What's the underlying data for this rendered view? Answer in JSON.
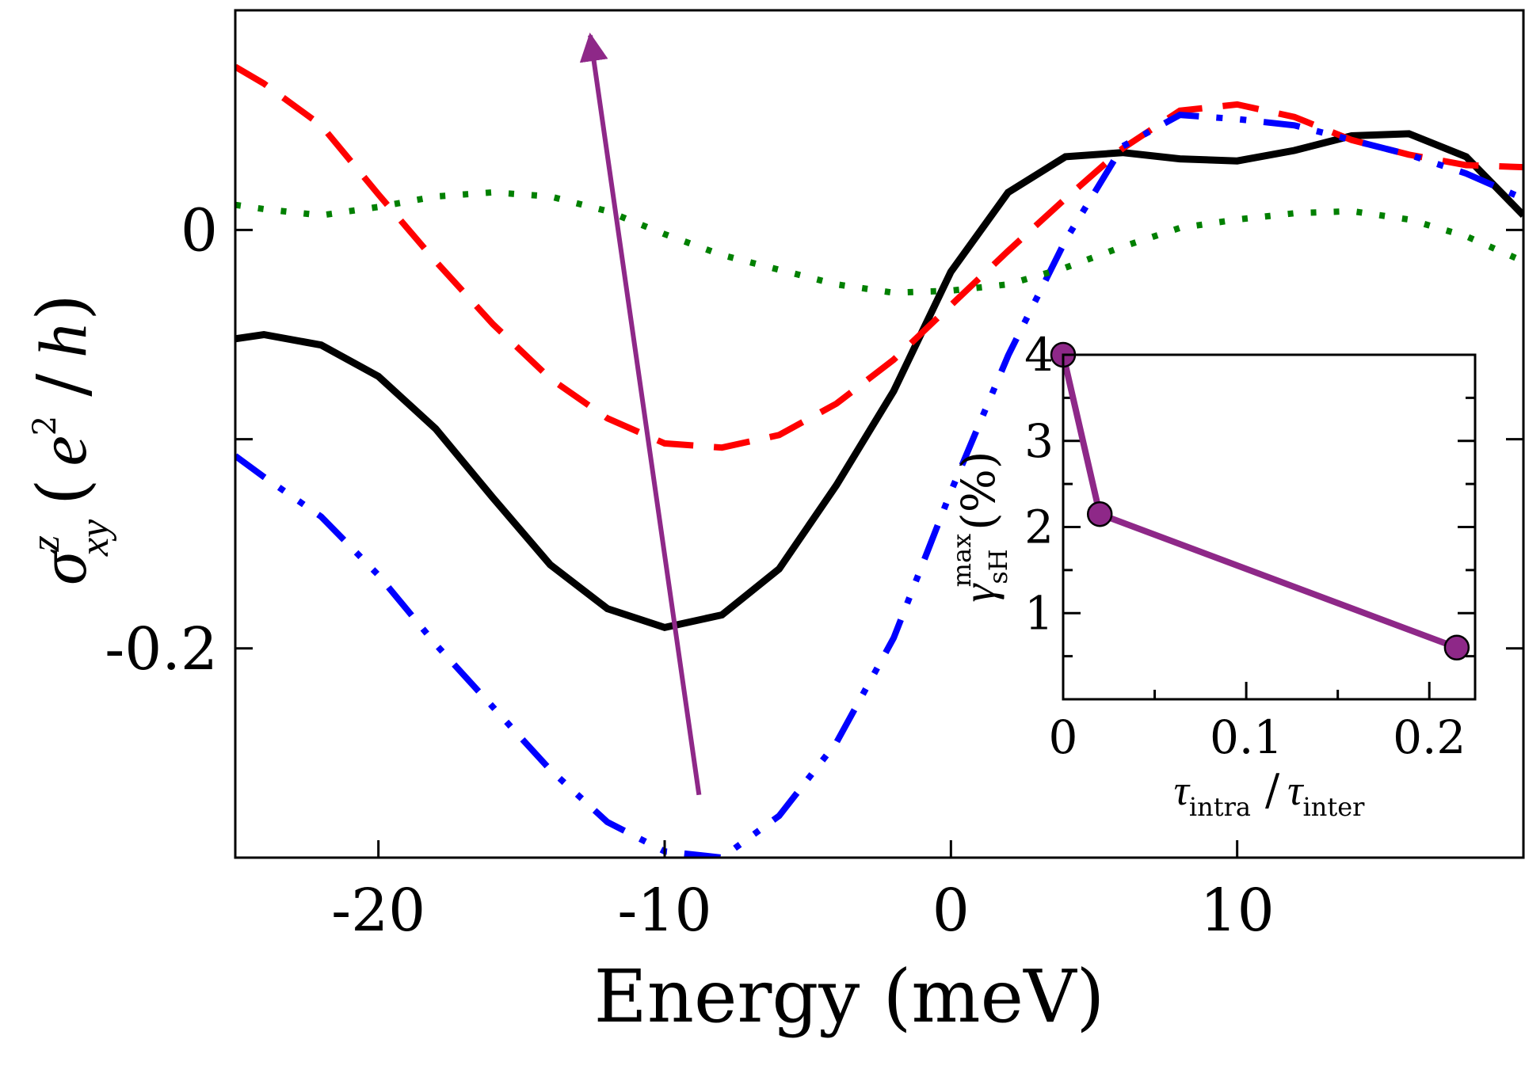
{
  "chart_data": [
    {
      "type": "line",
      "title": "",
      "xlabel": "Energy (meV)",
      "ylabel": {
        "symbol": "σ",
        "superscript": "z",
        "subscript": "xy",
        "open": "(",
        "unit_base": "e",
        "unit_sup": "2",
        "unit_slash": "/",
        "unit_h": "h",
        "close": ")"
      },
      "xlim": [
        -25,
        20
      ],
      "ylim": [
        -0.3,
        0.105
      ],
      "x_major_ticks": [
        {
          "value": -20,
          "label": "-20"
        },
        {
          "value": -10,
          "label": "-10"
        },
        {
          "value": 0,
          "label": "0"
        },
        {
          "value": 10,
          "label": "10"
        }
      ],
      "y_major_ticks": [
        {
          "value": 0,
          "label": "0"
        },
        {
          "value": -0.2,
          "label": "-0.2"
        }
      ],
      "y_minor_ticks": [
        -0.1,
        -0.3
      ],
      "right_ticks": [
        0,
        -0.1,
        -0.2
      ],
      "series": [
        {
          "name": "solid",
          "color": "#000000",
          "style": "solid",
          "points": [
            [
              -25,
              -0.052
            ],
            [
              -24,
              -0.05
            ],
            [
              -22,
              -0.055
            ],
            [
              -20,
              -0.07
            ],
            [
              -18,
              -0.095
            ],
            [
              -16,
              -0.128
            ],
            [
              -14,
              -0.16
            ],
            [
              -12,
              -0.181
            ],
            [
              -10,
              -0.19
            ],
            [
              -8,
              -0.184
            ],
            [
              -6,
              -0.162
            ],
            [
              -4,
              -0.122
            ],
            [
              -2,
              -0.077
            ],
            [
              0,
              -0.02
            ],
            [
              2,
              0.018
            ],
            [
              4,
              0.035
            ],
            [
              6,
              0.037
            ],
            [
              8,
              0.034
            ],
            [
              10,
              0.033
            ],
            [
              12,
              0.038
            ],
            [
              14,
              0.045
            ],
            [
              16,
              0.046
            ],
            [
              18,
              0.035
            ],
            [
              20,
              0.007
            ]
          ]
        },
        {
          "name": "dashed",
          "color": "#ff0000",
          "style": "dashed",
          "points": [
            [
              -25,
              0.078
            ],
            [
              -24,
              0.07
            ],
            [
              -22,
              0.05
            ],
            [
              -20,
              0.017
            ],
            [
              -18,
              -0.015
            ],
            [
              -16,
              -0.045
            ],
            [
              -14,
              -0.071
            ],
            [
              -12,
              -0.09
            ],
            [
              -10,
              -0.102
            ],
            [
              -8,
              -0.104
            ],
            [
              -6,
              -0.098
            ],
            [
              -4,
              -0.083
            ],
            [
              -2,
              -0.062
            ],
            [
              0,
              -0.036
            ],
            [
              2,
              -0.01
            ],
            [
              4,
              0.015
            ],
            [
              6,
              0.039
            ],
            [
              8,
              0.057
            ],
            [
              10,
              0.06
            ],
            [
              12,
              0.054
            ],
            [
              14,
              0.043
            ],
            [
              16,
              0.036
            ],
            [
              18,
              0.031
            ],
            [
              20,
              0.03
            ]
          ]
        },
        {
          "name": "dash-dot-dot",
          "color": "#0000ff",
          "style": "dashdotdot",
          "points": [
            [
              -25,
              -0.108
            ],
            [
              -24,
              -0.118
            ],
            [
              -22,
              -0.137
            ],
            [
              -20,
              -0.165
            ],
            [
              -18,
              -0.198
            ],
            [
              -16,
              -0.228
            ],
            [
              -14,
              -0.258
            ],
            [
              -12,
              -0.283
            ],
            [
              -10,
              -0.297
            ],
            [
              -8,
              -0.3
            ],
            [
              -6,
              -0.28
            ],
            [
              -4,
              -0.245
            ],
            [
              -2,
              -0.195
            ],
            [
              0,
              -0.125
            ],
            [
              2,
              -0.06
            ],
            [
              4,
              -0.005
            ],
            [
              6,
              0.04
            ],
            [
              8,
              0.055
            ],
            [
              10,
              0.053
            ],
            [
              12,
              0.05
            ],
            [
              14,
              0.043
            ],
            [
              16,
              0.036
            ],
            [
              18,
              0.027
            ],
            [
              20,
              0.015
            ]
          ]
        },
        {
          "name": "dotted",
          "color": "#008000",
          "style": "dotted",
          "points": [
            [
              -25,
              0.012
            ],
            [
              -24,
              0.01
            ],
            [
              -22,
              0.007
            ],
            [
              -20,
              0.011
            ],
            [
              -18,
              0.016
            ],
            [
              -16,
              0.018
            ],
            [
              -14,
              0.016
            ],
            [
              -12,
              0.009
            ],
            [
              -10,
              -0.002
            ],
            [
              -8,
              -0.012
            ],
            [
              -6,
              -0.019
            ],
            [
              -4,
              -0.026
            ],
            [
              -2,
              -0.03
            ],
            [
              0,
              -0.029
            ],
            [
              2,
              -0.026
            ],
            [
              4,
              -0.018
            ],
            [
              6,
              -0.008
            ],
            [
              8,
              0.001
            ],
            [
              10,
              0.005
            ],
            [
              12,
              0.008
            ],
            [
              14,
              0.009
            ],
            [
              16,
              0.005
            ],
            [
              18,
              -0.003
            ],
            [
              20,
              -0.015
            ]
          ]
        }
      ],
      "annotations": [
        {
          "type": "arrow",
          "color": "#8e2888",
          "from": [
            -8.8,
            -0.27
          ],
          "to": [
            -12.6,
            0.093
          ]
        }
      ]
    },
    {
      "type": "line",
      "title": "",
      "position": "inset-bottom-right",
      "xlabel": {
        "tau1": "τ",
        "sub1": "intra",
        "slash": "/",
        "tau2": "τ",
        "sub2": "inter"
      },
      "ylabel": {
        "gamma": "γ",
        "sub": "sH",
        "sup": "max",
        "rest": "(%)"
      },
      "xlim": [
        0,
        0.225
      ],
      "ylim": [
        0,
        4
      ],
      "x_major_ticks": [
        {
          "value": 0,
          "label": "0"
        },
        {
          "value": 0.1,
          "label": "0.1"
        },
        {
          "value": 0.2,
          "label": "0.2"
        }
      ],
      "x_minor_ticks": [
        0.05,
        0.15
      ],
      "y_major_ticks": [
        {
          "value": 1,
          "label": "1"
        },
        {
          "value": 2,
          "label": "2"
        },
        {
          "value": 3,
          "label": "3"
        },
        {
          "value": 4,
          "label": "4"
        }
      ],
      "y_minor_ticks": [
        0.5,
        1.5,
        2.5,
        3.5
      ],
      "series": [
        {
          "name": "gamma_max",
          "color": "#8e2888",
          "markers": true,
          "points": [
            [
              0,
              4.0
            ],
            [
              0.02,
              2.15
            ],
            [
              0.215,
              0.6
            ]
          ]
        }
      ]
    }
  ]
}
